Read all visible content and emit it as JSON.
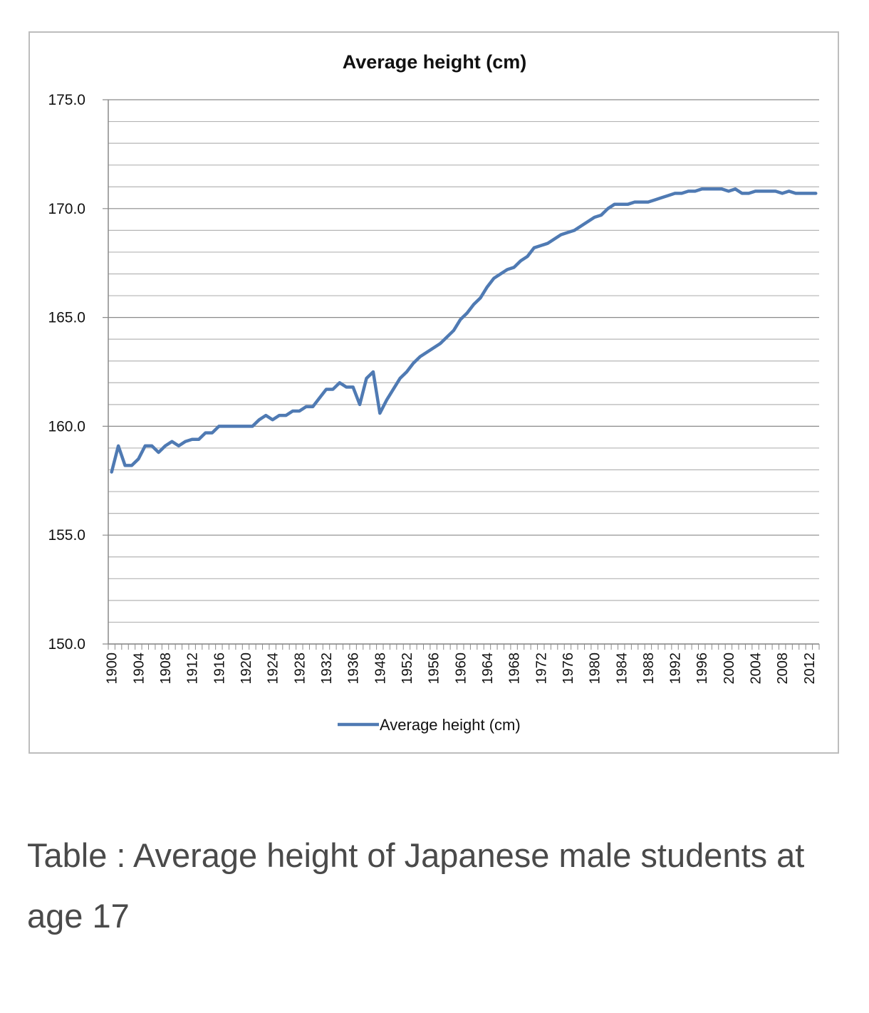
{
  "caption": "Table : Average height of Japanese male students at age 17",
  "chart_data": {
    "type": "line",
    "title": "Average height (cm)",
    "xlabel": "",
    "ylabel": "",
    "ylim": [
      150,
      175
    ],
    "y_ticks": [
      "150.0",
      "155.0",
      "160.0",
      "165.0",
      "170.0",
      "175.0"
    ],
    "y_minor_step": 1,
    "grid": true,
    "legend": "bottom",
    "line_color": "#4F7AB3",
    "categories": [
      "1900",
      "1901",
      "1902",
      "1903",
      "1904",
      "1905",
      "1906",
      "1907",
      "1908",
      "1909",
      "1910",
      "1911",
      "1912",
      "1913",
      "1914",
      "1915",
      "1916",
      "1917",
      "1918",
      "1919",
      "1920",
      "1921",
      "1922",
      "1923",
      "1924",
      "1925",
      "1926",
      "1927",
      "1928",
      "1929",
      "1930",
      "1931",
      "1932",
      "1933",
      "1934",
      "1935",
      "1936",
      "1937",
      "1938",
      "1939",
      "1948",
      "1949",
      "1950",
      "1951",
      "1952",
      "1953",
      "1954",
      "1955",
      "1956",
      "1957",
      "1958",
      "1959",
      "1960",
      "1961",
      "1962",
      "1963",
      "1964",
      "1965",
      "1966",
      "1967",
      "1968",
      "1969",
      "1970",
      "1971",
      "1972",
      "1973",
      "1974",
      "1975",
      "1976",
      "1977",
      "1978",
      "1979",
      "1980",
      "1981",
      "1982",
      "1983",
      "1984",
      "1985",
      "1986",
      "1987",
      "1988",
      "1989",
      "1990",
      "1991",
      "1992",
      "1993",
      "1994",
      "1995",
      "1996",
      "1997",
      "1998",
      "1999",
      "2000",
      "2001",
      "2002",
      "2003",
      "2004",
      "2005",
      "2006",
      "2007",
      "2008",
      "2009",
      "2010",
      "2011",
      "2012",
      "2013"
    ],
    "x_tick_labels": [
      "1900",
      "1904",
      "1908",
      "1912",
      "1916",
      "1920",
      "1924",
      "1928",
      "1932",
      "1936",
      "1948",
      "1952",
      "1956",
      "1960",
      "1964",
      "1968",
      "1972",
      "1976",
      "1980",
      "1984",
      "1988",
      "1992",
      "1996",
      "2000",
      "2004",
      "2008",
      "2012"
    ],
    "series": [
      {
        "name": "Average height (cm)",
        "values": [
          157.9,
          159.1,
          158.2,
          158.2,
          158.5,
          159.1,
          159.1,
          158.8,
          159.1,
          159.3,
          159.1,
          159.3,
          159.4,
          159.4,
          159.7,
          159.7,
          160.0,
          160.0,
          160.0,
          160.0,
          160.0,
          160.0,
          160.3,
          160.5,
          160.3,
          160.5,
          160.5,
          160.7,
          160.7,
          160.9,
          160.9,
          161.3,
          161.7,
          161.7,
          162.0,
          161.8,
          161.8,
          161.0,
          162.2,
          162.5,
          160.6,
          161.2,
          161.7,
          162.2,
          162.5,
          162.9,
          163.2,
          163.4,
          163.6,
          163.8,
          164.1,
          164.4,
          164.9,
          165.2,
          165.6,
          165.9,
          166.4,
          166.8,
          167.0,
          167.2,
          167.3,
          167.6,
          167.8,
          168.2,
          168.3,
          168.4,
          168.6,
          168.8,
          168.9,
          169.0,
          169.2,
          169.4,
          169.6,
          169.7,
          170.0,
          170.2,
          170.2,
          170.2,
          170.3,
          170.3,
          170.3,
          170.4,
          170.5,
          170.6,
          170.7,
          170.7,
          170.8,
          170.8,
          170.9,
          170.9,
          170.9,
          170.9,
          170.8,
          170.9,
          170.7,
          170.7,
          170.8,
          170.8,
          170.8,
          170.8,
          170.7,
          170.8,
          170.7,
          170.7,
          170.7,
          170.7
        ]
      }
    ]
  }
}
